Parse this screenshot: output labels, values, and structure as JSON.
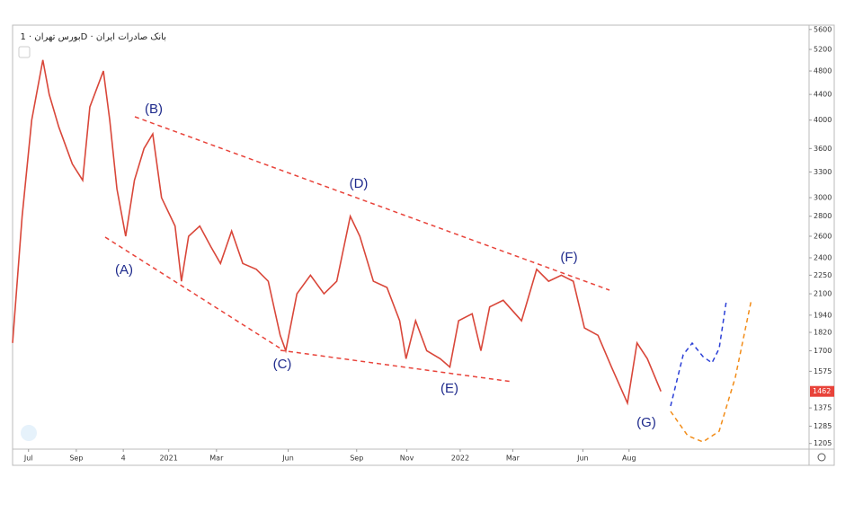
{
  "chart_data": {
    "type": "line",
    "title": "بورس تهران · 1D · بانک صادرات ایران",
    "log_scale": true,
    "x": [
      0,
      1.2,
      2.4,
      3.8,
      4.6,
      5.8,
      7.5,
      8.8,
      9.7,
      11.4,
      12.2,
      13.1,
      14.2,
      15.3,
      16.5,
      17.6,
      18.7,
      20.4,
      21.2,
      22.1,
      23.5,
      24.9,
      26.1,
      27.5,
      28.9,
      30.6,
      32.1,
      33.6,
      34.3,
      35.7,
      37.4,
      39.1,
      40.7,
      42.4,
      43.6,
      45.3,
      47.0,
      48.6,
      49.4,
      50.6,
      52.0,
      53.7,
      54.9,
      56.0,
      57.7,
      58.8,
      59.9,
      61.6,
      63.9,
      65.8,
      67.3,
      68.9,
      70.4,
      71.8,
      73.5,
      75.2,
      77.2,
      78.4,
      79.7,
      81.4
    ],
    "series": [
      {
        "name": "بانک صادرات ایران",
        "color": "#d9473a",
        "values": [
          1750,
          2800,
          4000,
          5000,
          4400,
          3900,
          3400,
          3200,
          4200,
          4800,
          4000,
          3100,
          2600,
          3200,
          3600,
          3800,
          3000,
          2700,
          2200,
          2600,
          2700,
          2500,
          2350,
          2650,
          2350,
          2300,
          2200,
          1800,
          1700,
          2100,
          2250,
          2100,
          2200,
          2800,
          2600,
          2200,
          2150,
          1900,
          1650,
          1900,
          1700,
          1650,
          1600,
          1900,
          1950,
          1700,
          2000,
          2050,
          1900,
          2300,
          2200,
          2250,
          2200,
          1850,
          1800,
          1600,
          1400,
          1750,
          1650,
          1462
        ]
      }
    ],
    "last_price": 1462,
    "xlim": [
      0,
      100
    ],
    "xticks": [
      {
        "value": 2,
        "label": "Jul"
      },
      {
        "value": 8,
        "label": "Sep"
      },
      {
        "value": 13.9,
        "label": "4"
      },
      {
        "value": 19.6,
        "label": "2021"
      },
      {
        "value": 25.6,
        "label": "Mar"
      },
      {
        "value": 34.6,
        "label": "Jun"
      },
      {
        "value": 43.2,
        "label": "Sep"
      },
      {
        "value": 49.5,
        "label": "Nov"
      },
      {
        "value": 56.2,
        "label": "2022"
      },
      {
        "value": 62.8,
        "label": "Mar"
      },
      {
        "value": 71.6,
        "label": "Jun"
      },
      {
        "value": 77.4,
        "label": "Aug"
      }
    ],
    "ylim": [
      1180,
      5690
    ],
    "yticks": [
      1205,
      1285,
      1375,
      1575,
      1700,
      1820,
      1940,
      2100,
      2250,
      2400,
      2600,
      2800,
      3000,
      3300,
      3600,
      4000,
      4400,
      4800,
      5200,
      5600
    ],
    "annotations": [
      "(A)",
      "(B)",
      "(C)",
      "(D)",
      "(E)",
      "(F)",
      "(G)"
    ]
  }
}
